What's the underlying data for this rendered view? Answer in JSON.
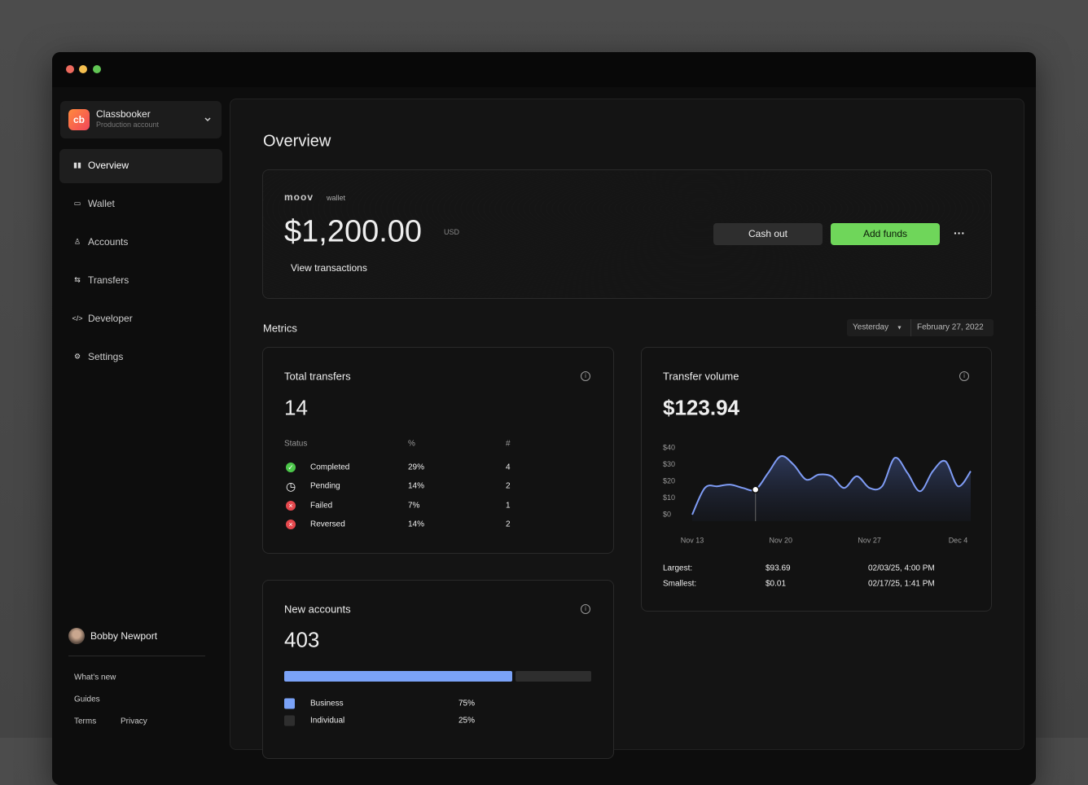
{
  "sidebar": {
    "account": {
      "logo": "cb",
      "name": "Classbooker",
      "subtitle": "Production account"
    },
    "nav": [
      "Overview",
      "Wallet",
      "Accounts",
      "Transfers",
      "Developer",
      "Settings"
    ],
    "user": "Bobby Newport",
    "links": [
      "What's new",
      "Guides",
      "Terms",
      "Privacy"
    ]
  },
  "main": {
    "title": "Overview",
    "wallet": {
      "brand": "moov",
      "label": "wallet",
      "balance": "$1,200.00",
      "currency": "USD",
      "link": "View transactions",
      "buttons": [
        "Cash out",
        "Add funds"
      ]
    },
    "metrics": {
      "title": "Metrics",
      "range": "Yesterday",
      "date": "February 27, 2022"
    },
    "total_transfers": {
      "title": "Total transfers",
      "value": 14,
      "columns": [
        "Status",
        "%",
        "#"
      ],
      "rows": [
        [
          "Completed",
          "29%",
          4
        ],
        [
          "Pending",
          "14%",
          2
        ],
        [
          "Failed",
          "7%",
          1
        ],
        [
          "Reversed",
          "14%",
          2
        ]
      ]
    },
    "transfer_volume": {
      "title": "Transfer volume",
      "value": "$123.94",
      "chart_data": {
        "type": "line",
        "categories": [
          "Nov 13",
          null,
          null,
          null,
          null,
          null,
          null,
          "Nov 20",
          null,
          null,
          null,
          null,
          null,
          null,
          "Nov 27",
          null,
          null,
          null,
          null,
          null,
          null,
          "Dec 4",
          null
        ],
        "series": [
          {
            "color": "#7f9cf5",
            "values": [
              0,
              16,
              17,
              18,
              16,
              15,
              25,
              35,
              30,
              21,
              24,
              23,
              16,
              23,
              16,
              17,
              34,
              25,
              14,
              26,
              32,
              17,
              26
            ]
          }
        ],
        "ylim": [
          0,
          40
        ],
        "yticks": [
          {
            "value": 0,
            "label": "$0"
          },
          {
            "value": 10,
            "label": "$10"
          },
          {
            "value": 20,
            "label": "$20"
          },
          {
            "value": 30,
            "label": "$30"
          },
          {
            "value": 40,
            "label": "$40"
          }
        ]
      },
      "stats": [
        [
          "Largest:",
          "$93.69",
          "02/03/25, 4:00 PM"
        ],
        [
          "Smallest:",
          "$0.01",
          "02/17/25, 1:41 PM"
        ]
      ]
    },
    "new_accounts": {
      "title": "New accounts",
      "value": 403,
      "segments": [
        {
          "name": "Business",
          "value": 75,
          "value_label": "75%",
          "color": "#7aa2f7"
        },
        {
          "name": "Individual",
          "value": 25,
          "value_label": "25%",
          "color": "#2e2e2e"
        }
      ]
    }
  }
}
